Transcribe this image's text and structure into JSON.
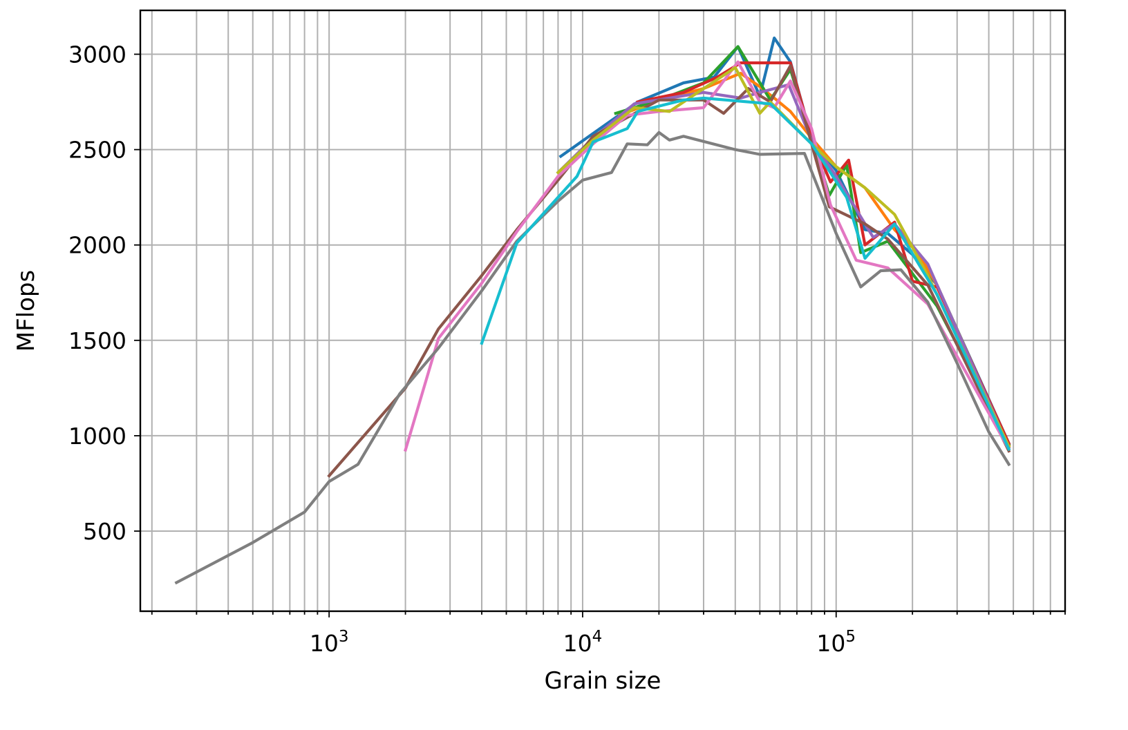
{
  "chart_data": {
    "type": "line",
    "title": "",
    "xlabel": "Grain size",
    "ylabel": "MFlops",
    "xscale": "log",
    "xlim": [
      180,
      800000
    ],
    "ylim": [
      80,
      3230
    ],
    "grid": true,
    "legend": "none",
    "x_ticks": [
      {
        "value": 1000,
        "base": "10",
        "exp": "3"
      },
      {
        "value": 10000,
        "base": "10",
        "exp": "4"
      },
      {
        "value": 100000,
        "base": "10",
        "exp": "5"
      }
    ],
    "y_ticks": [
      {
        "value": 500,
        "label": "500"
      },
      {
        "value": 1000,
        "label": "1000"
      },
      {
        "value": 1500,
        "label": "1500"
      },
      {
        "value": 2000,
        "label": "2000"
      },
      {
        "value": 2500,
        "label": "2500"
      },
      {
        "value": 3000,
        "label": "3000"
      }
    ],
    "series": [
      {
        "color": "#1f77b4",
        "points": [
          [
            8200,
            2465
          ],
          [
            16500,
            2750
          ],
          [
            25000,
            2850
          ],
          [
            33000,
            2880
          ],
          [
            41000,
            3040
          ],
          [
            50000,
            2780
          ],
          [
            57000,
            3085
          ],
          [
            66000,
            2960
          ],
          [
            80000,
            2560
          ],
          [
            100000,
            2390
          ],
          [
            130000,
            2080
          ],
          [
            160000,
            2060
          ],
          [
            200000,
            1950
          ],
          [
            250000,
            1790
          ],
          [
            480000,
            960
          ]
        ]
      },
      {
        "color": "#ff7f0e",
        "points": [
          [
            14000,
            2680
          ],
          [
            20000,
            2760
          ],
          [
            30000,
            2820
          ],
          [
            42000,
            2900
          ],
          [
            50000,
            2830
          ],
          [
            57000,
            2770
          ],
          [
            66000,
            2700
          ],
          [
            80000,
            2560
          ],
          [
            100000,
            2410
          ],
          [
            130000,
            2300
          ],
          [
            170000,
            2080
          ],
          [
            210000,
            1960
          ],
          [
            250000,
            1790
          ],
          [
            480000,
            950
          ]
        ]
      },
      {
        "color": "#2ca02c",
        "points": [
          [
            13500,
            2690
          ],
          [
            20000,
            2760
          ],
          [
            30000,
            2850
          ],
          [
            41000,
            3040
          ],
          [
            55000,
            2760
          ],
          [
            66000,
            2920
          ],
          [
            80000,
            2560
          ],
          [
            94000,
            2260
          ],
          [
            110000,
            2420
          ],
          [
            125000,
            1960
          ],
          [
            160000,
            2020
          ],
          [
            250000,
            1680
          ],
          [
            480000,
            955
          ]
        ]
      },
      {
        "color": "#d62728",
        "points": [
          [
            16500,
            2750
          ],
          [
            25000,
            2800
          ],
          [
            34000,
            2880
          ],
          [
            42000,
            2955
          ],
          [
            53000,
            2955
          ],
          [
            66000,
            2955
          ],
          [
            80000,
            2560
          ],
          [
            95000,
            2330
          ],
          [
            112000,
            2445
          ],
          [
            130000,
            2000
          ],
          [
            170000,
            2120
          ],
          [
            200000,
            1810
          ],
          [
            250000,
            1780
          ],
          [
            480000,
            960
          ]
        ]
      },
      {
        "color": "#9467bd",
        "points": [
          [
            8000,
            2380
          ],
          [
            11000,
            2560
          ],
          [
            16000,
            2740
          ],
          [
            30000,
            2800
          ],
          [
            42000,
            2770
          ],
          [
            50000,
            2800
          ],
          [
            65000,
            2840
          ],
          [
            80000,
            2550
          ],
          [
            100000,
            2360
          ],
          [
            140000,
            2040
          ],
          [
            170000,
            2110
          ],
          [
            230000,
            1900
          ],
          [
            480000,
            940
          ]
        ]
      },
      {
        "color": "#8c564b",
        "points": [
          [
            1000,
            790
          ],
          [
            2000,
            1250
          ],
          [
            2700,
            1560
          ],
          [
            4000,
            1840
          ],
          [
            5500,
            2080
          ],
          [
            8000,
            2340
          ],
          [
            11000,
            2570
          ],
          [
            20000,
            2760
          ],
          [
            30000,
            2760
          ],
          [
            36000,
            2690
          ],
          [
            45000,
            2820
          ],
          [
            55000,
            2750
          ],
          [
            66000,
            2940
          ],
          [
            80000,
            2530
          ],
          [
            94000,
            2200
          ],
          [
            130000,
            2110
          ],
          [
            160000,
            2030
          ],
          [
            230000,
            1790
          ],
          [
            480000,
            920
          ]
        ]
      },
      {
        "color": "#e377c2",
        "points": [
          [
            2000,
            925
          ],
          [
            2700,
            1510
          ],
          [
            4000,
            1800
          ],
          [
            5500,
            2070
          ],
          [
            8000,
            2360
          ],
          [
            11000,
            2530
          ],
          [
            15000,
            2680
          ],
          [
            20000,
            2700
          ],
          [
            30000,
            2720
          ],
          [
            41000,
            2960
          ],
          [
            50000,
            2750
          ],
          [
            57000,
            2720
          ],
          [
            66000,
            2860
          ],
          [
            80000,
            2610
          ],
          [
            95000,
            2210
          ],
          [
            120000,
            1920
          ],
          [
            160000,
            1880
          ],
          [
            230000,
            1690
          ],
          [
            480000,
            930
          ]
        ]
      },
      {
        "color": "#7f7f7f",
        "points": [
          [
            250,
            230
          ],
          [
            500,
            440
          ],
          [
            800,
            600
          ],
          [
            1000,
            760
          ],
          [
            1300,
            850
          ],
          [
            1900,
            1220
          ],
          [
            2700,
            1460
          ],
          [
            4000,
            1760
          ],
          [
            5500,
            2020
          ],
          [
            8000,
            2230
          ],
          [
            10000,
            2340
          ],
          [
            13000,
            2380
          ],
          [
            15000,
            2530
          ],
          [
            18000,
            2525
          ],
          [
            20000,
            2590
          ],
          [
            22000,
            2550
          ],
          [
            25000,
            2570
          ],
          [
            40000,
            2500
          ],
          [
            50000,
            2475
          ],
          [
            75000,
            2480
          ],
          [
            100000,
            2060
          ],
          [
            125000,
            1780
          ],
          [
            150000,
            1865
          ],
          [
            180000,
            1870
          ],
          [
            230000,
            1700
          ],
          [
            300000,
            1380
          ],
          [
            400000,
            1020
          ],
          [
            480000,
            850
          ]
        ]
      },
      {
        "color": "#bcbd22",
        "points": [
          [
            8000,
            2380
          ],
          [
            11000,
            2550
          ],
          [
            16000,
            2720
          ],
          [
            22000,
            2700
          ],
          [
            30000,
            2820
          ],
          [
            40000,
            2930
          ],
          [
            50000,
            2690
          ],
          [
            55000,
            2750
          ],
          [
            80000,
            2530
          ],
          [
            100000,
            2410
          ],
          [
            130000,
            2300
          ],
          [
            170000,
            2160
          ],
          [
            230000,
            1840
          ],
          [
            480000,
            945
          ]
        ]
      },
      {
        "color": "#17becf",
        "points": [
          [
            4000,
            1485
          ],
          [
            5500,
            2010
          ],
          [
            8000,
            2250
          ],
          [
            9500,
            2360
          ],
          [
            11000,
            2540
          ],
          [
            15000,
            2610
          ],
          [
            16500,
            2700
          ],
          [
            25000,
            2760
          ],
          [
            30000,
            2770
          ],
          [
            55000,
            2740
          ],
          [
            80000,
            2530
          ],
          [
            110000,
            2250
          ],
          [
            130000,
            1930
          ],
          [
            170000,
            2110
          ],
          [
            250000,
            1740
          ],
          [
            480000,
            930
          ]
        ]
      }
    ]
  }
}
